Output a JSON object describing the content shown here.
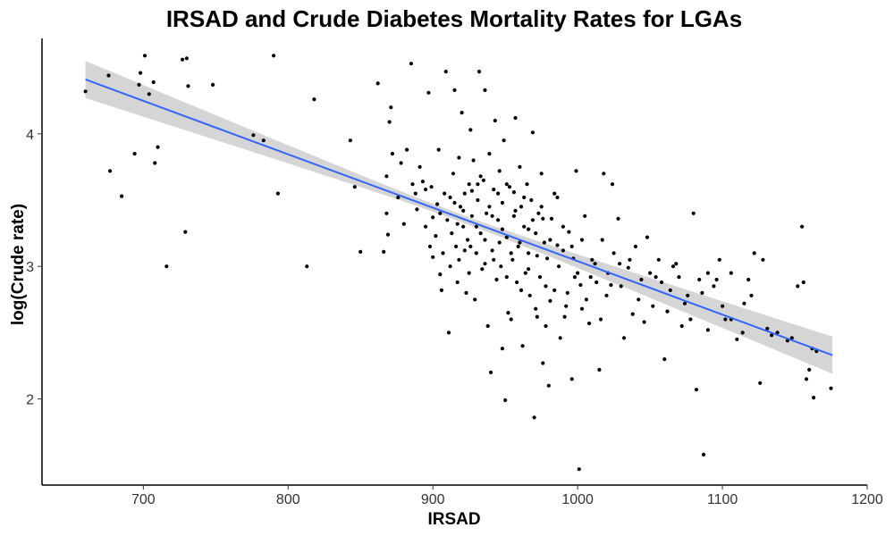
{
  "chart_data": {
    "type": "scatter",
    "title": "IRSAD and Crude Diabetes Mortality Rates for LGAs",
    "xlabel": "IRSAD",
    "ylabel": "log(Crude rate)",
    "xlim": [
      630,
      1200
    ],
    "ylim": [
      1.35,
      4.72
    ],
    "xticks": [
      700,
      800,
      900,
      1000,
      1100,
      1200
    ],
    "yticks": [
      2,
      3,
      4
    ],
    "grid": false,
    "legend": "none",
    "colors": {
      "points": "#000000",
      "fit_line": "#3366FF",
      "ribbon": "#BEBEBE"
    },
    "fit": {
      "method": "linear",
      "x_range": [
        660,
        1176
      ],
      "y_start": 4.41,
      "y_end": 2.33,
      "ci_half_width_ends": 0.14,
      "ci_half_width_center": 0.028
    },
    "points": [
      [
        660,
        4.32
      ],
      [
        676,
        4.44
      ],
      [
        677,
        3.72
      ],
      [
        685,
        3.53
      ],
      [
        694,
        3.85
      ],
      [
        698,
        4.46
      ],
      [
        697,
        4.37
      ],
      [
        701,
        4.59
      ],
      [
        704,
        4.3
      ],
      [
        707,
        4.39
      ],
      [
        708,
        3.78
      ],
      [
        710,
        3.9
      ],
      [
        716,
        3.0
      ],
      [
        727,
        4.56
      ],
      [
        730,
        4.57
      ],
      [
        731,
        4.36
      ],
      [
        729,
        3.26
      ],
      [
        748,
        4.37
      ],
      [
        776,
        3.99
      ],
      [
        783,
        3.95
      ],
      [
        790,
        4.59
      ],
      [
        793,
        3.55
      ],
      [
        813,
        3.0
      ],
      [
        818,
        4.26
      ],
      [
        843,
        3.95
      ],
      [
        846,
        3.6
      ],
      [
        850,
        3.11
      ],
      [
        862,
        4.38
      ],
      [
        866,
        3.11
      ],
      [
        868,
        3.68
      ],
      [
        868,
        3.4
      ],
      [
        869,
        3.24
      ],
      [
        870,
        4.09
      ],
      [
        871,
        4.2
      ],
      [
        872,
        3.85
      ],
      [
        876,
        3.52
      ],
      [
        878,
        3.78
      ],
      [
        880,
        3.32
      ],
      [
        882,
        3.88
      ],
      [
        885,
        4.53
      ],
      [
        886,
        3.62
      ],
      [
        888,
        3.55
      ],
      [
        889,
        3.43
      ],
      [
        891,
        3.75
      ],
      [
        893,
        3.64
      ],
      [
        895,
        3.3
      ],
      [
        897,
        4.31
      ],
      [
        898,
        3.15
      ],
      [
        899,
        3.6
      ],
      [
        900,
        3.37
      ],
      [
        900,
        3.07
      ],
      [
        902,
        3.23
      ],
      [
        903,
        3.47
      ],
      [
        904,
        3.88
      ],
      [
        905,
        2.94
      ],
      [
        906,
        2.82
      ],
      [
        907,
        3.1
      ],
      [
        908,
        3.55
      ],
      [
        909,
        4.47
      ],
      [
        910,
        3.35
      ],
      [
        911,
        2.5
      ],
      [
        912,
        3.0
      ],
      [
        913,
        3.25
      ],
      [
        914,
        3.7
      ],
      [
        915,
        4.33
      ],
      [
        916,
        3.15
      ],
      [
        917,
        2.88
      ],
      [
        918,
        3.05
      ],
      [
        919,
        3.45
      ],
      [
        920,
        4.16
      ],
      [
        921,
        3.3
      ],
      [
        922,
        3.55
      ],
      [
        923,
        2.8
      ],
      [
        924,
        3.2
      ],
      [
        925,
        3.62
      ],
      [
        925,
        2.95
      ],
      [
        926,
        4.03
      ],
      [
        927,
        3.38
      ],
      [
        928,
        3.8
      ],
      [
        929,
        2.75
      ],
      [
        930,
        3.1
      ],
      [
        931,
        3.5
      ],
      [
        932,
        4.47
      ],
      [
        933,
        3.25
      ],
      [
        934,
        2.98
      ],
      [
        935,
        3.65
      ],
      [
        936,
        4.33
      ],
      [
        937,
        3.4
      ],
      [
        938,
        2.55
      ],
      [
        939,
        3.85
      ],
      [
        940,
        2.2
      ],
      [
        941,
        3.12
      ],
      [
        942,
        3.58
      ],
      [
        943,
        4.1
      ],
      [
        944,
        2.9
      ],
      [
        945,
        3.35
      ],
      [
        946,
        3.72
      ],
      [
        947,
        3.0
      ],
      [
        948,
        3.48
      ],
      [
        948,
        2.38
      ],
      [
        949,
        3.95
      ],
      [
        950,
        1.99
      ],
      [
        951,
        3.22
      ],
      [
        952,
        2.65
      ],
      [
        953,
        3.6
      ],
      [
        954,
        2.6
      ],
      [
        955,
        3.05
      ],
      [
        956,
        3.38
      ],
      [
        957,
        4.12
      ],
      [
        958,
        2.88
      ],
      [
        959,
        3.15
      ],
      [
        960,
        3.75
      ],
      [
        961,
        3.45
      ],
      [
        962,
        2.4
      ],
      [
        963,
        3.3
      ],
      [
        964,
        2.95
      ],
      [
        965,
        3.62
      ],
      [
        966,
        3.1
      ],
      [
        967,
        2.78
      ],
      [
        968,
        3.5
      ],
      [
        969,
        4.01
      ],
      [
        970,
        1.86
      ],
      [
        971,
        3.25
      ],
      [
        972,
        2.62
      ],
      [
        973,
        3.4
      ],
      [
        974,
        2.92
      ],
      [
        975,
        3.7
      ],
      [
        976,
        2.27
      ],
      [
        977,
        3.18
      ],
      [
        978,
        2.55
      ],
      [
        979,
        3.06
      ],
      [
        980,
        2.1
      ],
      [
        982,
        3.36
      ],
      [
        984,
        2.82
      ],
      [
        986,
        3.52
      ],
      [
        988,
        2.46
      ],
      [
        990,
        3.12
      ],
      [
        992,
        2.7
      ],
      [
        994,
        3.26
      ],
      [
        996,
        2.15
      ],
      [
        998,
        2.92
      ],
      [
        999,
        3.72
      ],
      [
        1001,
        1.47
      ],
      [
        1002,
        2.86
      ],
      [
        1005,
        3.38
      ],
      [
        1008,
        2.57
      ],
      [
        1012,
        3.02
      ],
      [
        1015,
        2.22
      ],
      [
        1018,
        3.7
      ],
      [
        1020,
        2.78
      ],
      [
        1024,
        3.62
      ],
      [
        1028,
        3.36
      ],
      [
        1032,
        2.46
      ],
      [
        1035,
        2.99
      ],
      [
        1040,
        3.15
      ],
      [
        1044,
        2.9
      ],
      [
        1048,
        3.22
      ],
      [
        1052,
        2.7
      ],
      [
        1056,
        3.05
      ],
      [
        1060,
        2.3
      ],
      [
        1064,
        2.82
      ],
      [
        1068,
        3.02
      ],
      [
        1072,
        2.55
      ],
      [
        1076,
        2.78
      ],
      [
        1080,
        3.4
      ],
      [
        1082,
        2.07
      ],
      [
        1084,
        2.9
      ],
      [
        1087,
        1.58
      ],
      [
        1090,
        2.52
      ],
      [
        1094,
        2.85
      ],
      [
        1098,
        3.05
      ],
      [
        1102,
        2.6
      ],
      [
        1106,
        2.95
      ],
      [
        1110,
        2.45
      ],
      [
        1114,
        2.5
      ],
      [
        1118,
        2.9
      ],
      [
        1122,
        3.1
      ],
      [
        1126,
        2.12
      ],
      [
        1128,
        3.05
      ],
      [
        1131,
        2.53
      ],
      [
        1134,
        2.48
      ],
      [
        1138,
        2.5
      ],
      [
        1145,
        2.44
      ],
      [
        1148,
        2.46
      ],
      [
        1152,
        2.85
      ],
      [
        1155,
        3.3
      ],
      [
        1156,
        2.88
      ],
      [
        1158,
        2.15
      ],
      [
        1160,
        2.22
      ],
      [
        1162,
        2.38
      ],
      [
        1163,
        2.01
      ],
      [
        1165,
        2.36
      ],
      [
        1175,
        2.08
      ],
      [
        895,
        3.58
      ],
      [
        905,
        3.4
      ],
      [
        915,
        3.48
      ],
      [
        918,
        3.82
      ],
      [
        922,
        3.12
      ],
      [
        927,
        3.57
      ],
      [
        930,
        3.3
      ],
      [
        933,
        3.68
      ],
      [
        936,
        3.2
      ],
      [
        939,
        3.45
      ],
      [
        942,
        3.05
      ],
      [
        945,
        3.55
      ],
      [
        948,
        3.28
      ],
      [
        951,
        3.62
      ],
      [
        954,
        3.1
      ],
      [
        957,
        3.42
      ],
      [
        960,
        3.18
      ],
      [
        963,
        3.52
      ],
      [
        966,
        2.98
      ],
      [
        969,
        3.35
      ],
      [
        972,
        3.08
      ],
      [
        975,
        3.45
      ],
      [
        978,
        2.85
      ],
      [
        981,
        3.2
      ],
      [
        984,
        3.55
      ],
      [
        987,
        3.0
      ],
      [
        990,
        3.3
      ],
      [
        993,
        2.8
      ],
      [
        996,
        3.15
      ],
      [
        1000,
        2.95
      ],
      [
        1003,
        3.2
      ],
      [
        1006,
        2.75
      ],
      [
        1010,
        3.05
      ],
      [
        1013,
        2.88
      ],
      [
        1017,
        3.2
      ],
      [
        1021,
        2.95
      ],
      [
        1025,
        3.1
      ],
      [
        1030,
        2.85
      ],
      [
        1036,
        3.05
      ],
      [
        1042,
        2.75
      ],
      [
        1050,
        2.95
      ],
      [
        1058,
        2.88
      ],
      [
        1066,
        3.0
      ],
      [
        1074,
        2.72
      ],
      [
        1090,
        2.95
      ],
      [
        1100,
        2.7
      ],
      [
        1115,
        2.72
      ],
      [
        912,
        3.52
      ],
      [
        917,
        3.32
      ],
      [
        921,
        3.42
      ],
      [
        926,
        3.15
      ],
      [
        931,
        3.62
      ],
      [
        936,
        3.02
      ],
      [
        941,
        3.38
      ],
      [
        946,
        3.18
      ],
      [
        951,
        2.92
      ],
      [
        956,
        3.56
      ],
      [
        961,
        2.82
      ],
      [
        966,
        3.28
      ],
      [
        971,
        2.68
      ],
      [
        976,
        3.36
      ],
      [
        981,
        2.74
      ],
      [
        986,
        3.16
      ],
      [
        991,
        2.62
      ],
      [
        997,
        3.06
      ],
      [
        1003,
        2.68
      ],
      [
        1009,
        2.92
      ],
      [
        1016,
        2.6
      ],
      [
        1023,
        2.86
      ],
      [
        1029,
        3.02
      ],
      [
        1038,
        2.64
      ],
      [
        1046,
        2.58
      ],
      [
        1054,
        2.92
      ],
      [
        1062,
        2.66
      ],
      [
        1070,
        2.92
      ],
      [
        1078,
        2.6
      ],
      [
        1086,
        2.8
      ],
      [
        1096,
        2.9
      ],
      [
        1106,
        2.6
      ],
      [
        1120,
        2.78
      ]
    ]
  }
}
